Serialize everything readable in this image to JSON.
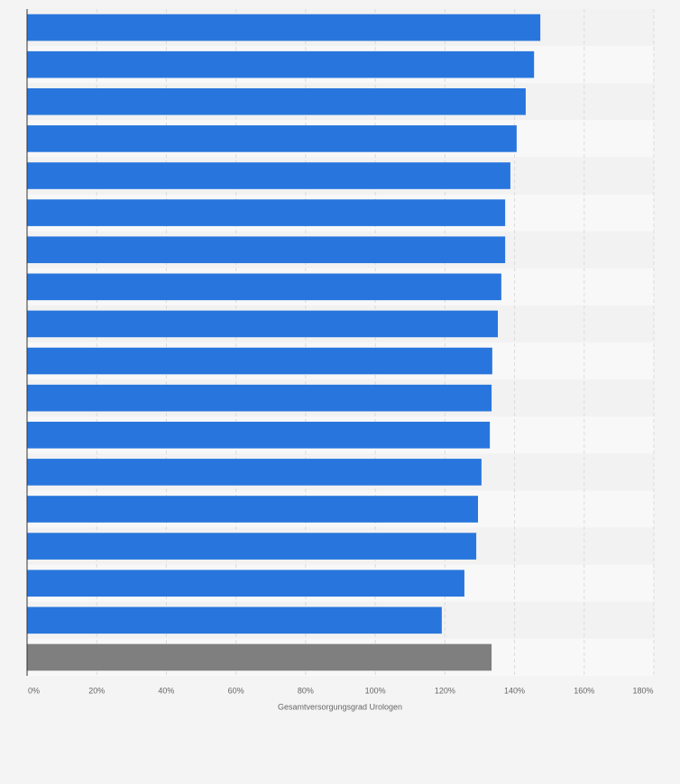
{
  "chart_data": {
    "type": "bar",
    "orientation": "horizontal",
    "categories": [
      null,
      null,
      null,
      null,
      null,
      null,
      null,
      null,
      null,
      null,
      null,
      null,
      null,
      null,
      null,
      null,
      null,
      null
    ],
    "values": [
      147.4,
      145.6,
      143.2,
      140.6,
      138.8,
      137.3,
      137.3,
      136.2,
      135.2,
      133.6,
      133.4,
      132.9,
      130.5,
      129.5,
      129.0,
      125.6,
      119.1,
      133.4
    ],
    "colors": [
      "#2876dd",
      "#2876dd",
      "#2876dd",
      "#2876dd",
      "#2876dd",
      "#2876dd",
      "#2876dd",
      "#2876dd",
      "#2876dd",
      "#2876dd",
      "#2876dd",
      "#2876dd",
      "#2876dd",
      "#2876dd",
      "#2876dd",
      "#2876dd",
      "#2876dd",
      "#7f7f7f"
    ],
    "xlabel": "Gesamtversorgungsgrad Urologen",
    "xlim": [
      0,
      180
    ],
    "xticks": [
      {
        "value": 0,
        "label": "0%"
      },
      {
        "value": 20,
        "label": "20%"
      },
      {
        "value": 40,
        "label": "40%"
      },
      {
        "value": 60,
        "label": "60%"
      },
      {
        "value": 80,
        "label": "80%"
      },
      {
        "value": 100,
        "label": "100%"
      },
      {
        "value": 120,
        "label": "120%"
      },
      {
        "value": 140,
        "label": "140%"
      },
      {
        "value": 160,
        "label": "160%"
      },
      {
        "value": 180,
        "label": "180%"
      }
    ],
    "grid": true
  }
}
